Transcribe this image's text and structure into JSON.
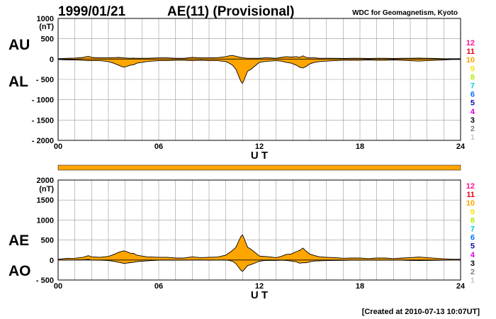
{
  "header": {
    "date": "1999/01/21",
    "title": "AE(11) (Provisional)",
    "source": "WDC for Geomagnetism, Kyoto"
  },
  "footer": {
    "created": "[Created at 2010-07-13 10:07UT]"
  },
  "colors": {
    "fill": "#FFA500",
    "outline": "#000000",
    "grid": "#999999",
    "station_bar": "#FFA500"
  },
  "station_legend": [
    {
      "label": "12",
      "color": "#FF1493"
    },
    {
      "label": "11",
      "color": "#E8001C"
    },
    {
      "label": "10",
      "color": "#FFA500"
    },
    {
      "label": "9",
      "color": "#FFE000"
    },
    {
      "label": "8",
      "color": "#B0F000"
    },
    {
      "label": "7",
      "color": "#00C8F0"
    },
    {
      "label": "6",
      "color": "#0070FF"
    },
    {
      "label": "5",
      "color": "#1010A0"
    },
    {
      "label": "4",
      "color": "#E000E0"
    },
    {
      "label": "3",
      "color": "#000000"
    },
    {
      "label": "2",
      "color": "#808080"
    },
    {
      "label": "1",
      "color": "#C8C8C8"
    }
  ],
  "chart_data": [
    {
      "type": "area",
      "name": "AU/AL",
      "side_labels": {
        "upper": "AU",
        "lower": "AL"
      },
      "yunit": "(nT)",
      "xlabel": "U T",
      "xlim": [
        0,
        24
      ],
      "xticks": [
        "00",
        "06",
        "12",
        "18",
        "24"
      ],
      "ylim": [
        -2000,
        1000
      ],
      "yticks": [
        "1000",
        "500",
        "0",
        "- 500",
        "- 1000",
        "- 1500",
        "- 2000"
      ],
      "grid": true,
      "x": [
        0,
        0.5,
        1.0,
        1.5,
        1.8,
        2.0,
        2.5,
        3.0,
        3.3,
        3.6,
        3.9,
        4.1,
        4.3,
        4.5,
        4.7,
        5.0,
        5.3,
        5.6,
        6.0,
        6.5,
        7.0,
        7.5,
        8.0,
        8.5,
        9.0,
        9.5,
        10.0,
        10.2,
        10.4,
        10.6,
        10.8,
        10.9,
        11.0,
        11.1,
        11.2,
        11.3,
        11.5,
        11.8,
        12.0,
        12.3,
        12.6,
        13.0,
        13.3,
        13.6,
        13.9,
        14.2,
        14.4,
        14.6,
        14.8,
        15.0,
        15.3,
        15.6,
        16.0,
        16.5,
        17.0,
        17.5,
        18.0,
        18.5,
        19.0,
        19.5,
        20.0,
        20.5,
        21.0,
        21.5,
        22.0,
        22.5,
        23.0,
        23.5,
        24.0
      ],
      "series": [
        {
          "name": "AU",
          "values": [
            10,
            20,
            25,
            40,
            70,
            40,
            30,
            30,
            35,
            40,
            30,
            25,
            20,
            25,
            20,
            20,
            20,
            25,
            30,
            30,
            20,
            20,
            40,
            30,
            30,
            35,
            60,
            80,
            90,
            70,
            50,
            40,
            30,
            30,
            25,
            20,
            20,
            20,
            20,
            30,
            30,
            20,
            40,
            60,
            50,
            60,
            40,
            80,
            40,
            30,
            30,
            20,
            20,
            20,
            15,
            20,
            20,
            15,
            20,
            20,
            15,
            20,
            20,
            25,
            20,
            15,
            10,
            10,
            10
          ]
        },
        {
          "name": "AL",
          "values": [
            -10,
            -20,
            -20,
            -30,
            -40,
            -40,
            -40,
            -60,
            -100,
            -150,
            -200,
            -180,
            -150,
            -140,
            -100,
            -80,
            -60,
            -50,
            -40,
            -40,
            -30,
            -30,
            -40,
            -30,
            -40,
            -40,
            -60,
            -100,
            -150,
            -250,
            -450,
            -550,
            -600,
            -500,
            -400,
            -300,
            -250,
            -150,
            -80,
            -60,
            -50,
            -40,
            -50,
            -80,
            -100,
            -150,
            -200,
            -220,
            -180,
            -120,
            -80,
            -60,
            -50,
            -40,
            -30,
            -30,
            -30,
            -20,
            -30,
            -30,
            -20,
            -30,
            -40,
            -50,
            -40,
            -30,
            -20,
            -10,
            -10
          ]
        }
      ]
    },
    {
      "type": "area",
      "name": "AE/AO",
      "side_labels": {
        "upper": "AE",
        "lower": "AO"
      },
      "yunit": "(nT)",
      "xlabel": "U T",
      "xlim": [
        0,
        24
      ],
      "xticks": [
        "00",
        "06",
        "12",
        "18",
        "24"
      ],
      "ylim": [
        -500,
        2000
      ],
      "yticks": [
        "2000",
        "1500",
        "1000",
        "500",
        "0",
        "- 500"
      ],
      "grid": true,
      "x": [
        0,
        0.5,
        1.0,
        1.5,
        1.8,
        2.0,
        2.5,
        3.0,
        3.3,
        3.6,
        3.9,
        4.1,
        4.3,
        4.5,
        4.7,
        5.0,
        5.3,
        5.6,
        6.0,
        6.5,
        7.0,
        7.5,
        8.0,
        8.5,
        9.0,
        9.5,
        10.0,
        10.2,
        10.4,
        10.6,
        10.8,
        10.9,
        11.0,
        11.1,
        11.2,
        11.3,
        11.5,
        11.8,
        12.0,
        12.3,
        12.6,
        13.0,
        13.3,
        13.6,
        13.9,
        14.2,
        14.4,
        14.6,
        14.8,
        15.0,
        15.3,
        15.6,
        16.0,
        16.5,
        17.0,
        17.5,
        18.0,
        18.5,
        19.0,
        19.5,
        20.0,
        20.5,
        21.0,
        21.5,
        22.0,
        22.5,
        23.0,
        23.5,
        24.0
      ],
      "series": [
        {
          "name": "AE",
          "values": [
            20,
            40,
            45,
            70,
            110,
            80,
            70,
            90,
            135,
            190,
            230,
            205,
            170,
            165,
            120,
            100,
            80,
            75,
            70,
            70,
            50,
            50,
            80,
            60,
            70,
            75,
            120,
            180,
            240,
            320,
            500,
            590,
            630,
            530,
            425,
            320,
            270,
            170,
            100,
            90,
            80,
            60,
            90,
            140,
            150,
            210,
            240,
            300,
            220,
            150,
            110,
            80,
            70,
            60,
            45,
            50,
            50,
            35,
            50,
            50,
            35,
            50,
            60,
            75,
            60,
            45,
            30,
            20,
            20
          ]
        },
        {
          "name": "AO",
          "values": [
            0,
            0,
            2,
            5,
            15,
            0,
            -5,
            -15,
            -32,
            -55,
            -85,
            -78,
            -65,
            -58,
            -40,
            -30,
            -20,
            -12,
            -5,
            -5,
            -5,
            -5,
            0,
            0,
            -5,
            -2,
            0,
            -10,
            -30,
            -90,
            -200,
            -255,
            -285,
            -235,
            -188,
            -140,
            -115,
            -65,
            -30,
            -15,
            -10,
            -10,
            -5,
            -10,
            -25,
            -45,
            -80,
            -70,
            -70,
            -45,
            -25,
            -20,
            -15,
            -10,
            -8,
            -5,
            -5,
            -3,
            -5,
            -5,
            -3,
            -5,
            -10,
            -12,
            -10,
            -8,
            -5,
            0,
            0
          ]
        }
      ]
    }
  ]
}
